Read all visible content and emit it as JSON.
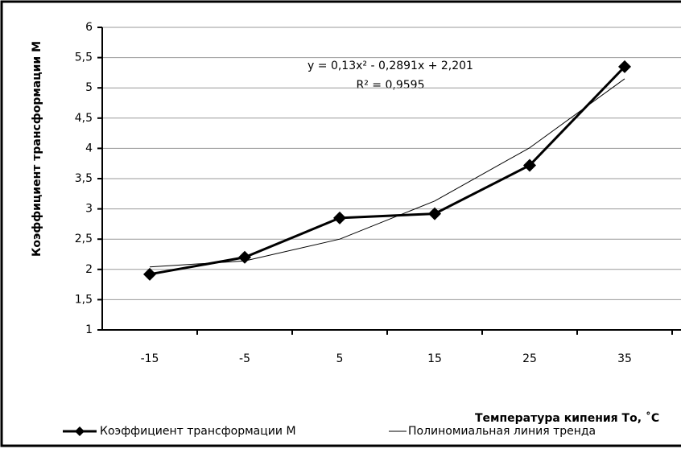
{
  "chart_data": {
    "type": "line",
    "y_label": "Коэффициент трансформации М",
    "x_label": "Температура кипения То, ˚С",
    "categories": [
      "-15",
      "-5",
      "5",
      "15",
      "25",
      "35"
    ],
    "series": [
      {
        "name": "Коэффициент трансформации  М",
        "color": "#000000",
        "values": [
          1.92,
          2.2,
          2.85,
          2.92,
          3.72,
          5.35
        ]
      },
      {
        "name": "Полиномиальная линия тренда",
        "color": "#000000",
        "values": [
          2.04,
          2.14,
          2.5,
          3.13,
          4.01,
          5.15
        ]
      }
    ],
    "annotations": [
      "y = 0,13x² - 0,2891x + 2,201",
      "R² = 0,9595"
    ],
    "ylim": [
      1,
      6
    ],
    "yticks": [
      1,
      {
        "value": 1.5,
        "label": "1,5"
      },
      2,
      {
        "value": 2.5,
        "label": "2,5"
      },
      3,
      {
        "value": 3.5,
        "label": "3,5"
      },
      4,
      {
        "value": 4.5,
        "label": "4,5"
      },
      5,
      {
        "value": 5.5,
        "label": "5,5"
      },
      6
    ],
    "grid": true,
    "legend": "bottom"
  }
}
